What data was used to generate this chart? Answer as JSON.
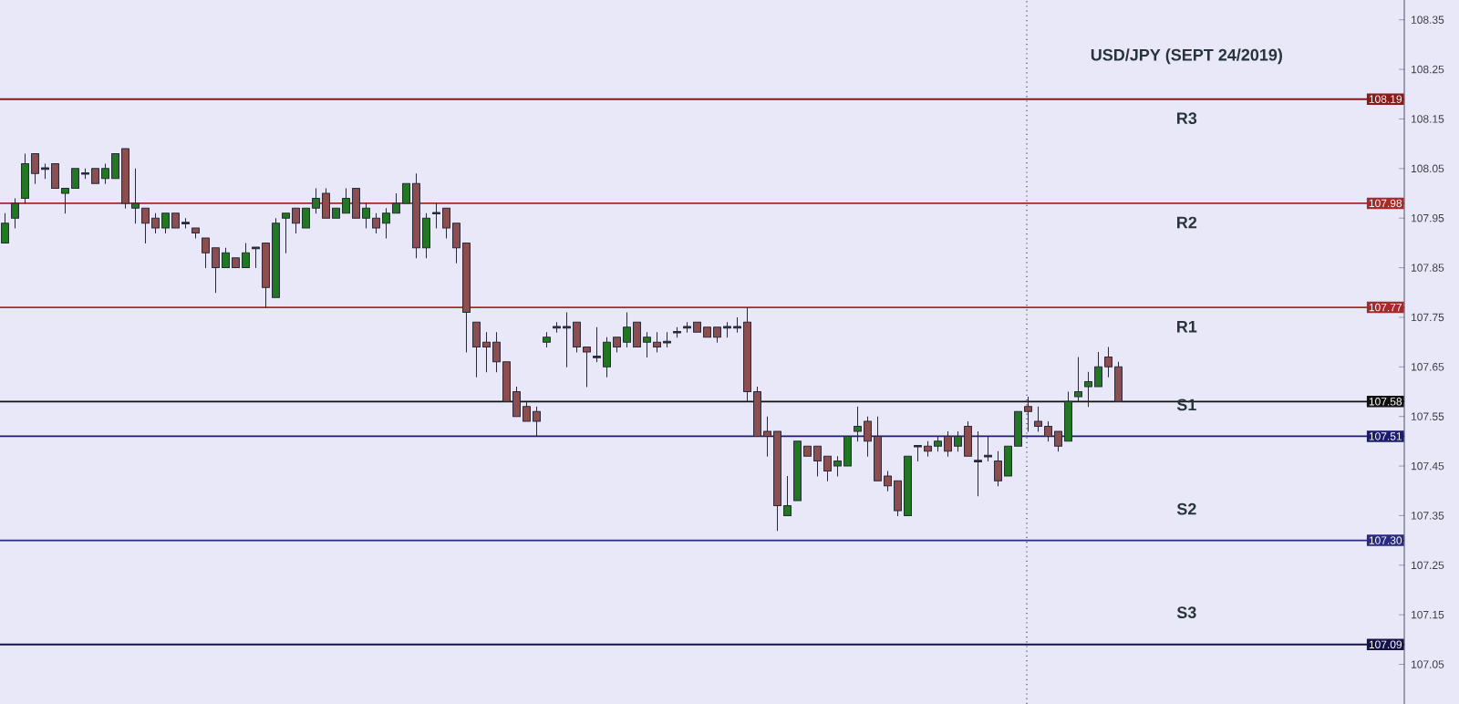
{
  "chart_data": {
    "type": "candlestick",
    "title": "USD/JPY (SEPT 24/2019)",
    "categories": [
      null,
      null,
      null,
      null,
      null,
      null,
      null,
      null,
      null,
      null,
      null,
      null,
      null,
      null,
      null,
      null,
      null,
      null,
      null,
      null,
      null,
      null,
      null,
      null,
      null,
      null,
      null,
      null,
      null,
      null,
      null,
      null,
      null,
      null,
      null,
      null,
      null,
      null,
      null,
      null,
      null,
      null,
      null,
      null,
      null,
      null,
      null,
      null,
      null,
      null,
      null,
      null,
      null,
      null,
      null,
      null,
      null,
      null,
      null,
      null,
      null,
      null,
      null,
      null,
      null,
      null,
      null,
      null,
      null,
      null,
      null,
      null,
      null,
      null,
      null,
      null,
      null,
      null,
      null,
      null,
      null,
      null,
      null,
      null,
      null,
      null,
      null,
      null,
      null,
      null,
      null,
      null,
      null,
      null,
      null,
      null,
      null,
      null,
      null,
      null,
      null,
      null,
      null,
      null,
      null,
      null,
      null,
      null,
      null,
      null,
      null,
      null,
      null,
      null,
      null,
      null,
      null,
      null,
      null,
      null,
      null,
      null,
      null,
      null,
      null,
      null,
      null,
      null,
      null,
      null,
      null,
      null,
      null,
      null,
      null,
      null,
      null,
      null,
      null,
      null
    ],
    "ohlc": [
      [
        107.9,
        107.96,
        107.9,
        107.94
      ],
      [
        107.95,
        107.99,
        107.93,
        107.98
      ],
      [
        107.99,
        108.08,
        107.98,
        108.06
      ],
      [
        108.08,
        108.08,
        108.02,
        108.04
      ],
      [
        108.05,
        108.06,
        108.03,
        108.05
      ],
      [
        108.06,
        108.06,
        108.01,
        108.01
      ],
      [
        108.0,
        108.01,
        107.96,
        108.01
      ],
      [
        108.01,
        108.05,
        108.01,
        108.05
      ],
      [
        108.04,
        108.05,
        108.03,
        108.04
      ],
      [
        108.05,
        108.05,
        108.02,
        108.02
      ],
      [
        108.03,
        108.06,
        108.02,
        108.05
      ],
      [
        108.03,
        108.08,
        108.03,
        108.08
      ],
      [
        108.09,
        108.09,
        107.97,
        107.98
      ],
      [
        107.97,
        108.05,
        107.94,
        107.98
      ],
      [
        107.97,
        107.97,
        107.9,
        107.94
      ],
      [
        107.95,
        107.96,
        107.92,
        107.93
      ],
      [
        107.93,
        107.96,
        107.92,
        107.96
      ],
      [
        107.96,
        107.96,
        107.93,
        107.93
      ],
      [
        107.94,
        107.95,
        107.93,
        107.94
      ],
      [
        107.93,
        107.93,
        107.91,
        107.92
      ],
      [
        107.91,
        107.91,
        107.85,
        107.88
      ],
      [
        107.89,
        107.89,
        107.8,
        107.85
      ],
      [
        107.85,
        107.89,
        107.85,
        107.88
      ],
      [
        107.87,
        107.87,
        107.85,
        107.85
      ],
      [
        107.85,
        107.9,
        107.85,
        107.88
      ],
      [
        107.89,
        107.89,
        107.85,
        107.89
      ],
      [
        107.9,
        107.9,
        107.77,
        107.81
      ],
      [
        107.79,
        107.95,
        107.79,
        107.94
      ],
      [
        107.95,
        107.96,
        107.88,
        107.96
      ],
      [
        107.97,
        107.97,
        107.92,
        107.94
      ],
      [
        107.93,
        107.97,
        107.93,
        107.97
      ],
      [
        107.97,
        108.01,
        107.96,
        107.99
      ],
      [
        108.0,
        108.01,
        107.95,
        107.95
      ],
      [
        107.95,
        107.97,
        107.95,
        107.97
      ],
      [
        107.96,
        108.01,
        107.96,
        107.99
      ],
      [
        108.01,
        108.01,
        107.95,
        107.95
      ],
      [
        107.95,
        107.98,
        107.93,
        107.97
      ],
      [
        107.95,
        107.96,
        107.92,
        107.93
      ],
      [
        107.94,
        107.97,
        107.91,
        107.96
      ],
      [
        107.96,
        108.0,
        107.96,
        107.98
      ],
      [
        107.98,
        108.02,
        107.98,
        108.02
      ],
      [
        108.02,
        108.04,
        107.87,
        107.89
      ],
      [
        107.89,
        107.96,
        107.87,
        107.95
      ],
      [
        107.96,
        107.98,
        107.93,
        107.96
      ],
      [
        107.97,
        107.97,
        107.91,
        107.93
      ],
      [
        107.94,
        107.94,
        107.86,
        107.89
      ],
      [
        107.9,
        107.9,
        107.68,
        107.76
      ],
      [
        107.74,
        107.74,
        107.63,
        107.69
      ],
      [
        107.7,
        107.72,
        107.64,
        107.69
      ],
      [
        107.7,
        107.72,
        107.64,
        107.66
      ],
      [
        107.66,
        107.66,
        107.58,
        107.58
      ],
      [
        107.6,
        107.61,
        107.55,
        107.55
      ],
      [
        107.57,
        107.58,
        107.54,
        107.54
      ],
      [
        107.56,
        107.57,
        107.51,
        107.54
      ],
      [
        107.7,
        107.72,
        107.69,
        107.71
      ],
      [
        107.73,
        107.74,
        107.72,
        107.73
      ],
      [
        107.73,
        107.76,
        107.65,
        107.73
      ],
      [
        107.74,
        107.74,
        107.68,
        107.69
      ],
      [
        107.69,
        107.69,
        107.61,
        107.68
      ],
      [
        107.67,
        107.73,
        107.66,
        107.67
      ],
      [
        107.65,
        107.71,
        107.63,
        107.7
      ],
      [
        107.71,
        107.71,
        107.68,
        107.69
      ],
      [
        107.7,
        107.76,
        107.69,
        107.73
      ],
      [
        107.74,
        107.74,
        107.69,
        107.69
      ],
      [
        107.7,
        107.72,
        107.67,
        107.71
      ],
      [
        107.7,
        107.72,
        107.68,
        107.69
      ],
      [
        107.7,
        107.72,
        107.69,
        107.7
      ],
      [
        107.72,
        107.73,
        107.71,
        107.72
      ],
      [
        107.73,
        107.74,
        107.72,
        107.73
      ],
      [
        107.74,
        107.74,
        107.72,
        107.72
      ],
      [
        107.73,
        107.73,
        107.71,
        107.71
      ],
      [
        107.73,
        107.73,
        107.7,
        107.71
      ],
      [
        107.73,
        107.74,
        107.71,
        107.73
      ],
      [
        107.73,
        107.75,
        107.72,
        107.73
      ],
      [
        107.74,
        107.77,
        107.58,
        107.6
      ],
      [
        107.6,
        107.61,
        107.51,
        107.51
      ],
      [
        107.52,
        107.55,
        107.47,
        107.51
      ],
      [
        107.52,
        107.52,
        107.32,
        107.37
      ],
      [
        107.35,
        107.43,
        107.35,
        107.37
      ],
      [
        107.38,
        107.5,
        107.38,
        107.5
      ],
      [
        107.49,
        107.49,
        107.47,
        107.47
      ],
      [
        107.49,
        107.49,
        107.43,
        107.46
      ],
      [
        107.47,
        107.47,
        107.42,
        107.44
      ],
      [
        107.45,
        107.47,
        107.43,
        107.46
      ],
      [
        107.45,
        107.51,
        107.45,
        107.51
      ],
      [
        107.52,
        107.57,
        107.5,
        107.53
      ],
      [
        107.54,
        107.55,
        107.47,
        107.5
      ],
      [
        107.51,
        107.55,
        107.42,
        107.42
      ],
      [
        107.43,
        107.44,
        107.4,
        107.41
      ],
      [
        107.42,
        107.42,
        107.35,
        107.36
      ],
      [
        107.35,
        107.47,
        107.35,
        107.47
      ],
      [
        107.49,
        107.49,
        107.46,
        107.49
      ],
      [
        107.49,
        107.5,
        107.47,
        107.48
      ],
      [
        107.49,
        107.51,
        107.48,
        107.5
      ],
      [
        107.51,
        107.52,
        107.47,
        107.48
      ],
      [
        107.49,
        107.52,
        107.48,
        107.51
      ],
      [
        107.53,
        107.54,
        107.47,
        107.47
      ],
      [
        107.46,
        107.52,
        107.39,
        107.46
      ],
      [
        107.47,
        107.51,
        107.46,
        107.47
      ],
      [
        107.46,
        107.48,
        107.41,
        107.42
      ],
      [
        107.43,
        107.49,
        107.43,
        107.49
      ],
      [
        107.49,
        107.56,
        107.49,
        107.56
      ],
      [
        107.57,
        107.59,
        107.52,
        107.56
      ],
      [
        107.54,
        107.57,
        107.52,
        107.53
      ],
      [
        107.53,
        107.54,
        107.5,
        107.51
      ],
      [
        107.52,
        107.52,
        107.48,
        107.49
      ],
      [
        107.5,
        107.6,
        107.5,
        107.58
      ],
      [
        107.59,
        107.67,
        107.58,
        107.6
      ],
      [
        107.61,
        107.64,
        107.57,
        107.62
      ],
      [
        107.61,
        107.68,
        107.61,
        107.65
      ],
      [
        107.67,
        107.69,
        107.63,
        107.65
      ],
      [
        107.65,
        107.66,
        107.58,
        107.58
      ],
      null,
      null,
      null,
      null,
      null,
      null,
      null,
      null,
      null,
      null,
      null,
      null,
      null,
      null,
      null,
      null,
      null,
      null,
      null,
      null,
      null,
      null,
      null,
      null,
      null,
      null,
      null,
      null
    ],
    "ylim": [
      106.97,
      108.39
    ],
    "yticks": [
      108.35,
      108.25,
      108.15,
      108.05,
      107.95,
      107.85,
      107.75,
      107.65,
      107.55,
      107.45,
      107.35,
      107.25,
      107.15,
      107.05
    ],
    "tick_labels": "y",
    "grid": false,
    "ref_lines": [
      {
        "axis": "y",
        "value": 108.19,
        "label": "108.19",
        "color": "#8b1a1a"
      },
      {
        "axis": "y",
        "value": 107.98,
        "label": "107.98",
        "color": "#a52a2a"
      },
      {
        "axis": "y",
        "value": 107.77,
        "label": "107.77",
        "color": "#a52a2a"
      },
      {
        "axis": "y",
        "value": 107.58,
        "label": "107.58",
        "color": "#111111"
      },
      {
        "axis": "y",
        "value": 107.51,
        "label": "107.51",
        "color": "#1c1c6e"
      },
      {
        "axis": "y",
        "value": 107.3,
        "label": "107.30",
        "color": "#2a2a80"
      },
      {
        "axis": "y",
        "value": 107.09,
        "label": "107.09",
        "color": "#14144a"
      }
    ],
    "annotations": [
      "R3",
      "R2",
      "R1",
      "S1",
      "S2",
      "S3"
    ]
  }
}
